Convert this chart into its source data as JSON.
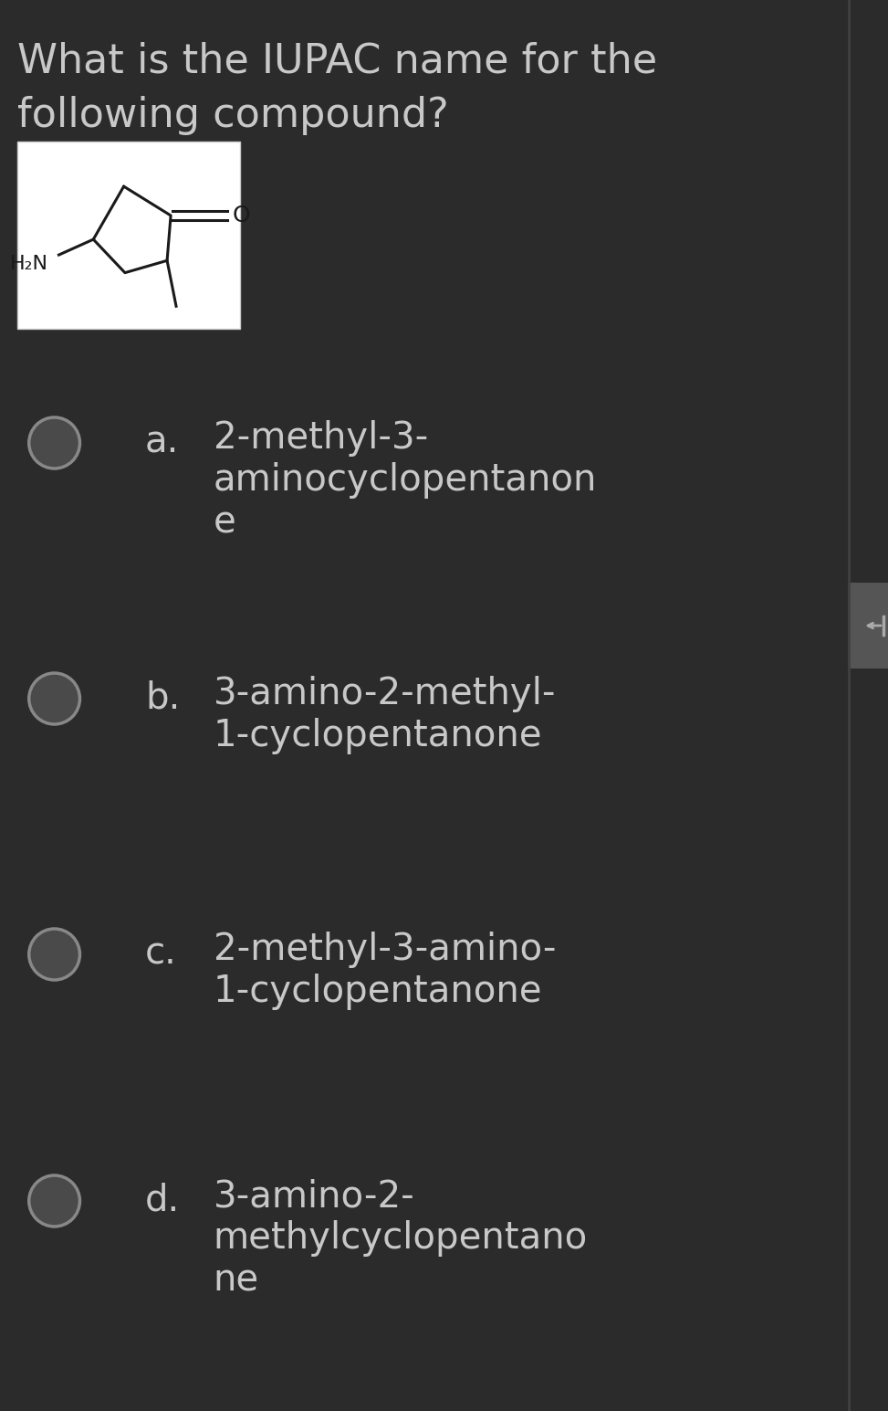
{
  "background_color": "#2b2b2b",
  "question_line1": "What is the IUPAC name for the",
  "question_line2": "following compound?",
  "question_font_color": "#c8c8c8",
  "question_font_size": 32,
  "options": [
    {
      "label": "a.",
      "line1": "2-methyl-3-",
      "line2": "aminocyclopentanon",
      "line3": "e"
    },
    {
      "label": "b.",
      "line1": "3-amino-2-methyl-",
      "line2": "1-cyclopentanone",
      "line3": ""
    },
    {
      "label": "c.",
      "line1": "2-methyl-3-amino-",
      "line2": "1-cyclopentanone",
      "line3": ""
    },
    {
      "label": "d.",
      "line1": "3-amino-2-",
      "line2": "methylcyclopentano",
      "line3": "ne"
    }
  ],
  "option_font_color": "#c8c8c8",
  "option_font_size": 29,
  "label_font_size": 29,
  "circle_facecolor": "#4a4a4a",
  "circle_edgecolor": "#888888",
  "image_box_color": "#ffffff",
  "divider_color": "#404040",
  "scrollbar_bg": "#555555",
  "scrollbar_arrow_color": "#aaaaaa"
}
